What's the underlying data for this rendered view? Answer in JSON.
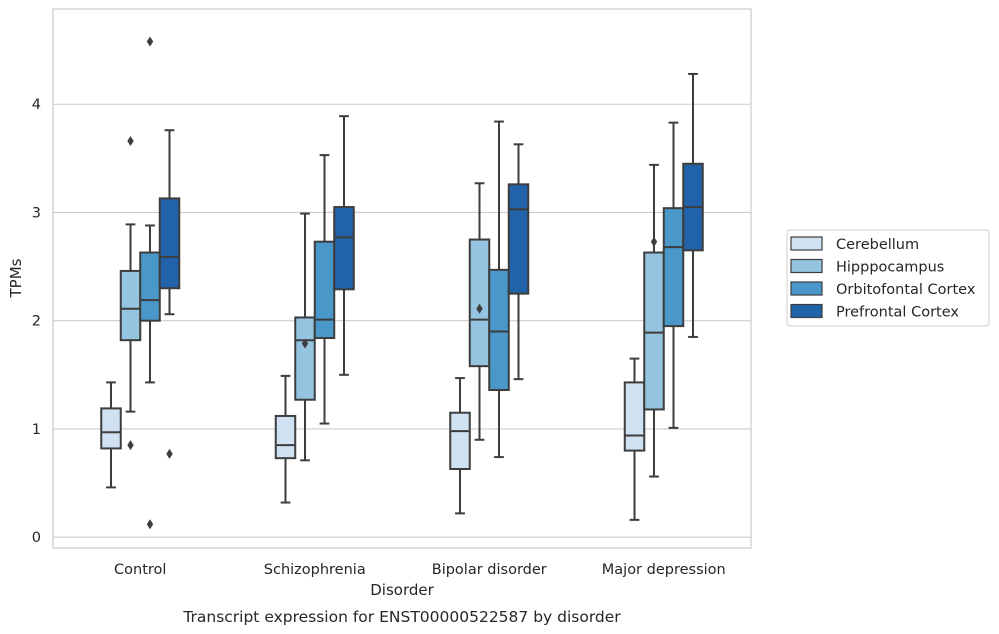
{
  "chart_data": {
    "type": "box",
    "title": "Transcript expression for ENST00000522587 by disorder",
    "xlabel": "Disorder",
    "ylabel": "TPMs",
    "categories": [
      "Control",
      "Schizophrenia",
      "Bipolar disorder",
      "Major depression"
    ],
    "ylim": [
      -0.1,
      4.88
    ],
    "yticks": [
      0,
      1,
      2,
      3,
      4
    ],
    "grid": "horizontal",
    "legend_position": "right",
    "series": [
      {
        "name": "Cerebellum",
        "color": "#d0e1f2",
        "boxes": [
          {
            "whislo": 0.46,
            "q1": 0.82,
            "med": 0.97,
            "q3": 1.19,
            "whishi": 1.43,
            "fliers": []
          },
          {
            "whislo": 0.32,
            "q1": 0.73,
            "med": 0.85,
            "q3": 1.12,
            "whishi": 1.49,
            "fliers": []
          },
          {
            "whislo": 0.22,
            "q1": 0.63,
            "med": 0.98,
            "q3": 1.15,
            "whishi": 1.47,
            "fliers": []
          },
          {
            "whislo": 0.16,
            "q1": 0.8,
            "med": 0.94,
            "q3": 1.43,
            "whishi": 1.65,
            "fliers": []
          }
        ]
      },
      {
        "name": "Hipppocampus",
        "color": "#94c4df",
        "boxes": [
          {
            "whislo": 1.16,
            "q1": 1.82,
            "med": 2.11,
            "q3": 2.46,
            "whishi": 2.89,
            "fliers": [
              3.66,
              0.85
            ]
          },
          {
            "whislo": 0.71,
            "q1": 1.27,
            "med": 1.82,
            "q3": 2.03,
            "whishi": 2.99,
            "fliers": [
              1.79
            ]
          },
          {
            "whislo": 0.9,
            "q1": 1.58,
            "med": 2.01,
            "q3": 2.75,
            "whishi": 3.27,
            "fliers": [
              2.11
            ]
          },
          {
            "whislo": 0.56,
            "q1": 1.18,
            "med": 1.89,
            "q3": 2.63,
            "whishi": 3.44,
            "fliers": [
              2.73
            ]
          }
        ]
      },
      {
        "name": "Orbitofontal Cortex",
        "color": "#4a98c9",
        "boxes": [
          {
            "whislo": 1.43,
            "q1": 2.0,
            "med": 2.19,
            "q3": 2.63,
            "whishi": 2.88,
            "fliers": [
              4.58,
              0.12
            ]
          },
          {
            "whislo": 1.05,
            "q1": 1.84,
            "med": 2.01,
            "q3": 2.73,
            "whishi": 3.53,
            "fliers": []
          },
          {
            "whislo": 0.74,
            "q1": 1.36,
            "med": 1.9,
            "q3": 2.47,
            "whishi": 3.84,
            "fliers": []
          },
          {
            "whislo": 1.01,
            "q1": 1.95,
            "med": 2.68,
            "q3": 3.04,
            "whishi": 3.83,
            "fliers": []
          }
        ]
      },
      {
        "name": "Prefrontal Cortex",
        "color": "#2163aa",
        "boxes": [
          {
            "whislo": 2.06,
            "q1": 2.3,
            "med": 2.59,
            "q3": 3.13,
            "whishi": 3.76,
            "fliers": [
              0.77
            ]
          },
          {
            "whislo": 1.5,
            "q1": 2.29,
            "med": 2.77,
            "q3": 3.05,
            "whishi": 3.89,
            "fliers": []
          },
          {
            "whislo": 1.46,
            "q1": 2.25,
            "med": 3.03,
            "q3": 3.26,
            "whishi": 3.63,
            "fliers": []
          },
          {
            "whislo": 1.85,
            "q1": 2.65,
            "med": 3.05,
            "q3": 3.45,
            "whishi": 4.28,
            "fliers": []
          }
        ]
      }
    ]
  }
}
